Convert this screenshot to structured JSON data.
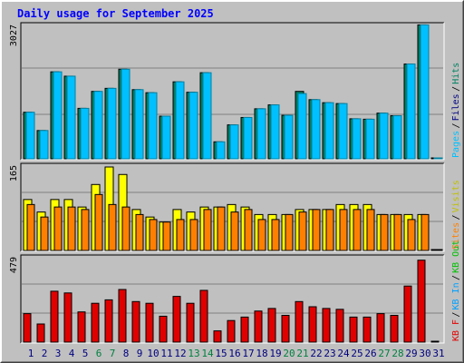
{
  "title": "Daily usage for September 2025",
  "colors": {
    "background": "#c0c0c0",
    "title": "#0000ff",
    "pages": "#00c0ff",
    "pages_edge": "#0080a0",
    "files": "#008060",
    "hits": "#00c0ff",
    "visits": "#ffff00",
    "sites": "#ff8000",
    "kbin": "#00a0ff",
    "kbout": "#00c000",
    "kbf": "#e00000",
    "weekend": "#008040",
    "weekday": "#000080"
  },
  "chart_data": [
    {
      "type": "bar",
      "panel": "hits-files-pages",
      "ylabel_max": "3027",
      "legend": [
        "Pages",
        "Files",
        "Hits"
      ],
      "categories": [
        "1",
        "2",
        "3",
        "4",
        "5",
        "6",
        "7",
        "8",
        "9",
        "10",
        "11",
        "12",
        "13",
        "14",
        "15",
        "16",
        "17",
        "18",
        "19",
        "20",
        "21",
        "22",
        "23",
        "24",
        "25",
        "26",
        "27",
        "28",
        "29",
        "30",
        "31"
      ],
      "weekend_days": [
        6,
        7,
        13,
        14,
        20,
        21,
        27,
        28
      ],
      "ylim": [
        0,
        3027
      ],
      "series": [
        {
          "name": "Hits",
          "values": [
            1050,
            630,
            1980,
            1880,
            1140,
            1530,
            1600,
            2040,
            1570,
            1500,
            960,
            1750,
            1510,
            1960,
            370,
            760,
            930,
            1130,
            1220,
            980,
            1480,
            1340,
            1270,
            1250,
            900,
            890,
            1030,
            970,
            2160,
            3060,
            0
          ]
        },
        {
          "name": "Files",
          "values": [
            1050,
            630,
            1980,
            1880,
            1140,
            1530,
            1600,
            2040,
            1570,
            1500,
            960,
            1750,
            1510,
            1960,
            370,
            760,
            930,
            1130,
            1220,
            980,
            1530,
            1340,
            1270,
            1250,
            900,
            890,
            1030,
            970,
            2160,
            3060,
            0
          ]
        }
      ]
    },
    {
      "type": "bar",
      "panel": "visits-sites",
      "ylabel_max": "165",
      "legend": [
        "Sites",
        "Visits"
      ],
      "categories": [
        "1",
        "2",
        "3",
        "4",
        "5",
        "6",
        "7",
        "8",
        "9",
        "10",
        "11",
        "12",
        "13",
        "14",
        "15",
        "16",
        "17",
        "18",
        "19",
        "20",
        "21",
        "22",
        "23",
        "24",
        "25",
        "26",
        "27",
        "28",
        "29",
        "30",
        "31"
      ],
      "ylim": [
        0,
        165
      ],
      "series": [
        {
          "name": "Visits",
          "values": [
            100,
            75,
            100,
            100,
            85,
            130,
            165,
            150,
            80,
            65,
            55,
            80,
            75,
            85,
            85,
            90,
            85,
            70,
            70,
            70,
            80,
            80,
            80,
            90,
            90,
            90,
            70,
            70,
            70,
            70,
            0
          ]
        },
        {
          "name": "Sites",
          "values": [
            90,
            65,
            85,
            85,
            80,
            110,
            90,
            85,
            70,
            60,
            55,
            60,
            60,
            80,
            85,
            75,
            80,
            60,
            60,
            70,
            75,
            80,
            80,
            80,
            80,
            80,
            70,
            70,
            60,
            70,
            0
          ]
        }
      ]
    },
    {
      "type": "bar",
      "panel": "kbf-kbin-kbout",
      "ylabel_max": "479",
      "legend": [
        "KB F",
        "KB In",
        "KB Out"
      ],
      "categories": [
        "1",
        "2",
        "3",
        "4",
        "5",
        "6",
        "7",
        "8",
        "9",
        "10",
        "11",
        "12",
        "13",
        "14",
        "15",
        "16",
        "17",
        "18",
        "19",
        "20",
        "21",
        "22",
        "23",
        "24",
        "25",
        "26",
        "27",
        "28",
        "29",
        "30",
        "31"
      ],
      "ylim": [
        0,
        479
      ],
      "series": [
        {
          "name": "KB F",
          "values": [
            160,
            100,
            290,
            280,
            170,
            220,
            240,
            300,
            230,
            220,
            145,
            260,
            220,
            295,
            60,
            120,
            140,
            175,
            190,
            150,
            230,
            200,
            190,
            185,
            140,
            140,
            160,
            150,
            320,
            470,
            0
          ]
        }
      ]
    }
  ]
}
